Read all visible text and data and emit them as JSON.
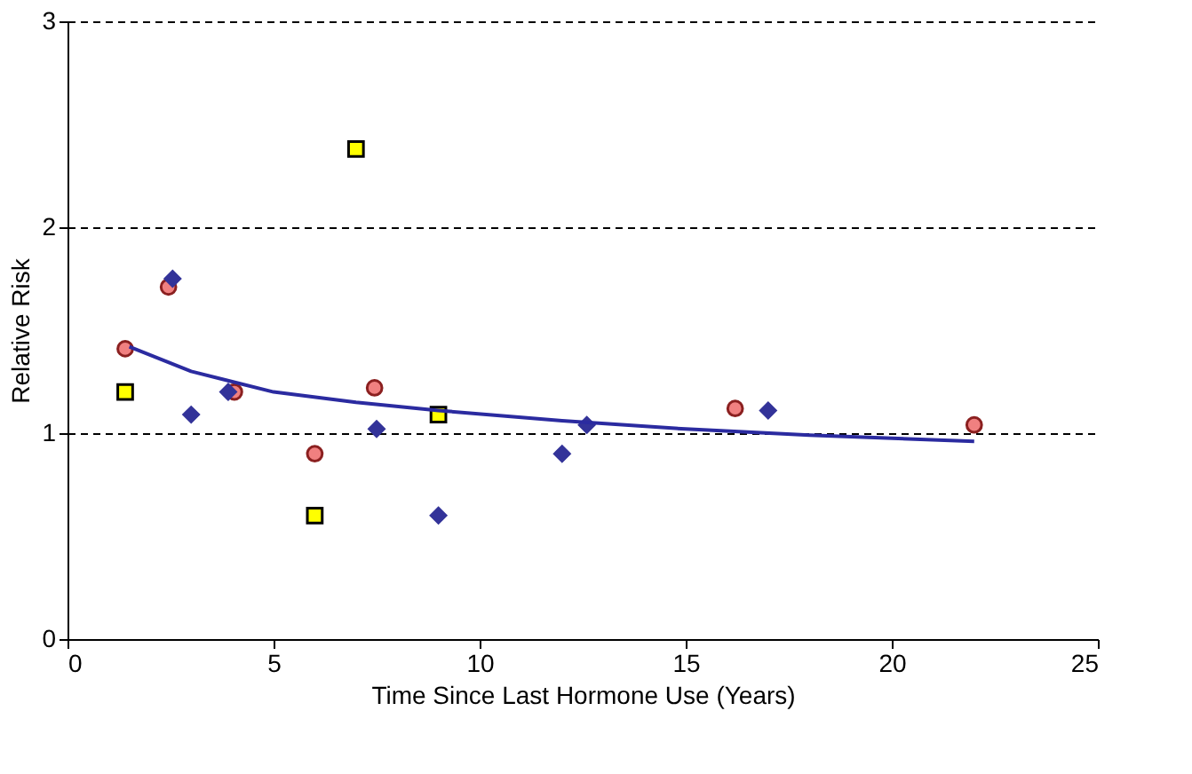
{
  "chart_data": {
    "type": "scatter",
    "xlabel": "Time Since Last Hormone Use (Years)",
    "ylabel": "Relative Risk",
    "xlim": [
      0,
      25
    ],
    "xticks": [
      0,
      5,
      10,
      15,
      20,
      25
    ],
    "ylim": [
      0,
      3
    ],
    "yticks": [
      0,
      1,
      2,
      3
    ],
    "grid": "y",
    "line_style": "dashed",
    "series": [
      {
        "marker": "circle",
        "color": "#f08080",
        "x": [
          1.4,
          2.45,
          4.05,
          6.0,
          7.45,
          16.2,
          22.0
        ],
        "values": [
          1.41,
          1.71,
          1.2,
          0.9,
          1.22,
          1.12,
          1.04
        ]
      },
      {
        "marker": "square",
        "color": "#ffff00",
        "x": [
          1.4,
          6.0,
          7.0,
          9.0
        ],
        "values": [
          1.2,
          0.6,
          2.38,
          1.09
        ]
      },
      {
        "marker": "diamond",
        "color": "#333399",
        "x": [
          2.55,
          3.0,
          3.9,
          7.5,
          9.0,
          12.0,
          12.6,
          17.0
        ],
        "values": [
          1.75,
          1.09,
          1.2,
          1.02,
          0.6,
          0.9,
          1.04,
          1.11
        ]
      },
      {
        "type": "line",
        "line_style": "solid",
        "color": "#2b2ba0",
        "x": [
          1.5,
          3,
          5,
          7,
          9,
          12,
          15,
          18,
          22
        ],
        "values": [
          1.42,
          1.3,
          1.2,
          1.15,
          1.11,
          1.06,
          1.02,
          0.99,
          0.96
        ]
      }
    ]
  }
}
